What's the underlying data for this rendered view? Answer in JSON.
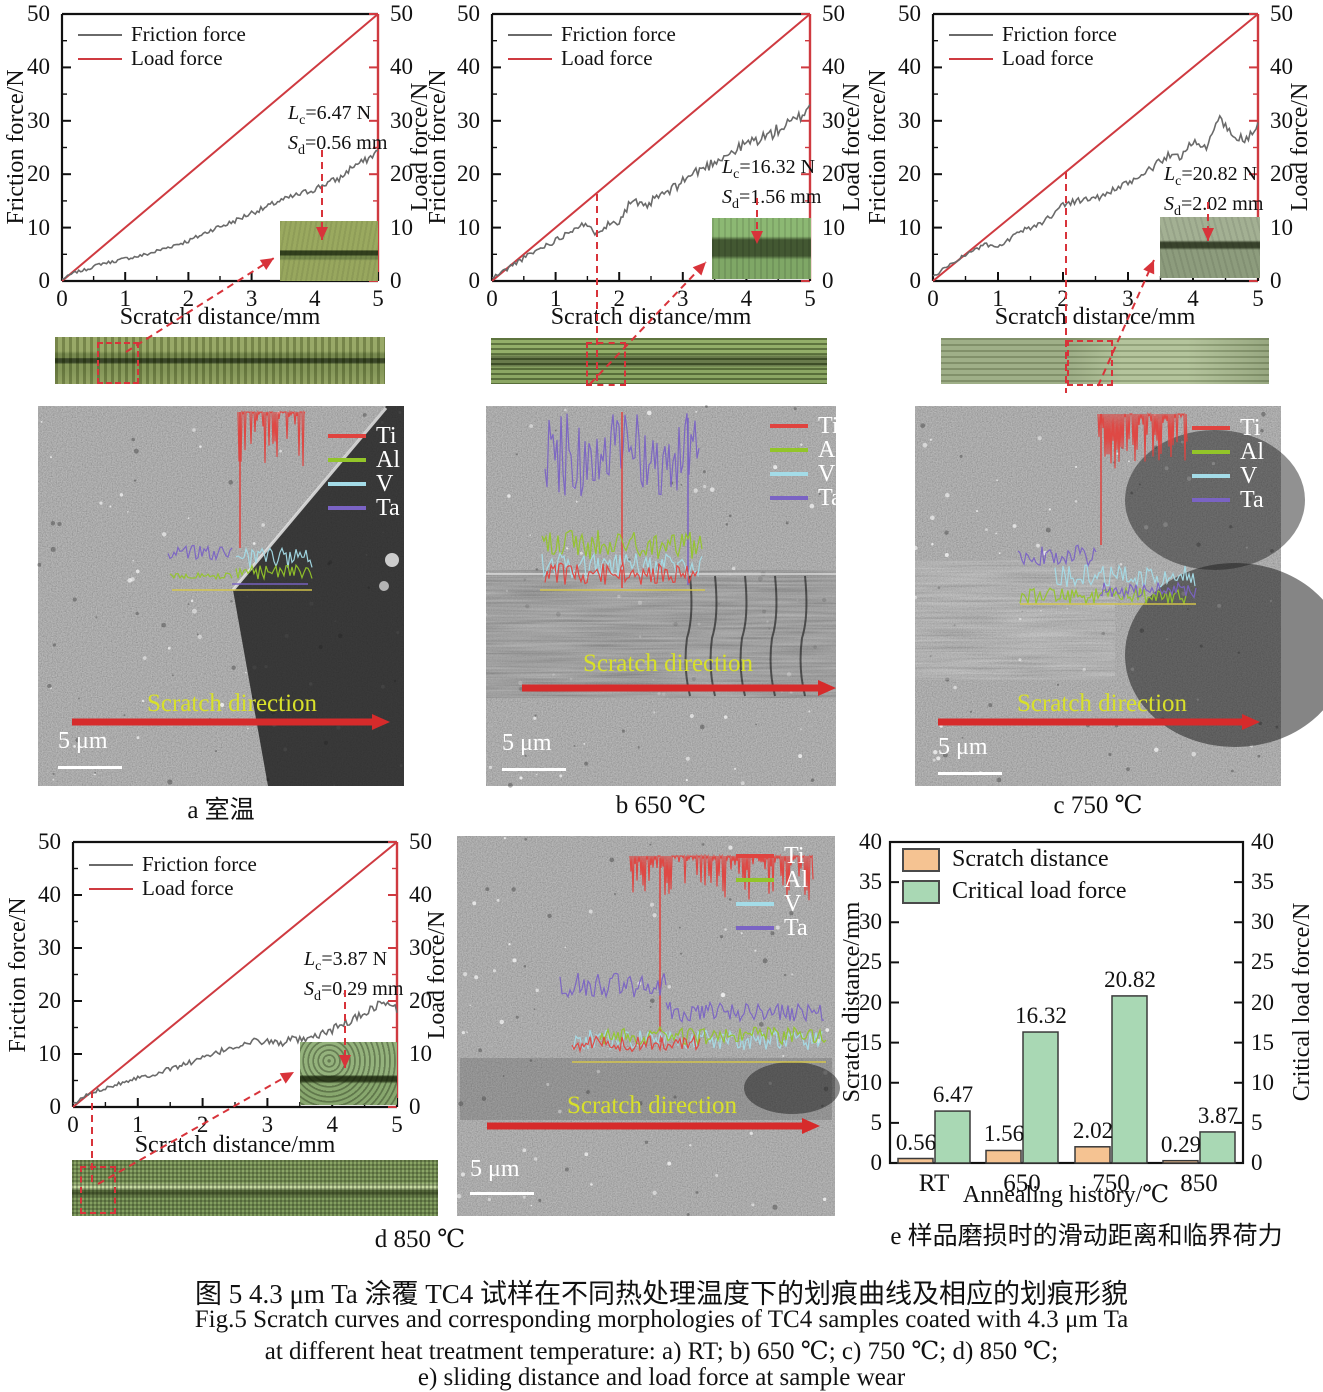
{
  "palette": {
    "load_red": "#cf3a40",
    "friction_gray": "#6a6a6a",
    "dashed_red": "#d8333a",
    "arrow_red": "#d62b2b",
    "bar_orange": "#f5c392",
    "bar_green": "#a9d8b4",
    "sem_label_yellow": "#d8e02a",
    "trace_ti_red": "#e0433f",
    "trace_al_green": "#93c529",
    "trace_v_cyan": "#a4dce8",
    "trace_ta_purple": "#7a63c4",
    "baseline_yellow": "#d8c84a"
  },
  "line_common": {
    "ylabel_left": "Friction force/N",
    "ylabel_right": "Load force/N",
    "xlabel": "Scratch distance/mm",
    "legend_friction": "Friction force",
    "legend_load": "Load force",
    "yticks": [
      0,
      10,
      20,
      30,
      40,
      50
    ],
    "xticks": [
      0,
      1,
      2,
      3,
      4,
      5
    ]
  },
  "charts": {
    "a": {
      "l1": {
        "sym": "L",
        "sub": "c",
        "rest": "=6.47 N"
      },
      "l2": {
        "sym": "S",
        "sub": "d",
        "rest": "=0.56 mm"
      }
    },
    "b": {
      "l1": {
        "sym": "L",
        "sub": "c",
        "rest": "=16.32 N"
      },
      "l2": {
        "sym": "S",
        "sub": "d",
        "rest": "=1.56 mm"
      }
    },
    "c": {
      "l1": {
        "sym": "L",
        "sub": "c",
        "rest": "=20.82 N"
      },
      "l2": {
        "sym": "S",
        "sub": "d",
        "rest": "=2.02 mm"
      }
    },
    "d": {
      "l1": {
        "sym": "L",
        "sub": "c",
        "rest": "=3.87 N"
      },
      "l2": {
        "sym": "S",
        "sub": "d",
        "rest": "=0.29 mm"
      }
    }
  },
  "sem_common": {
    "scratch_direction": "Scratch direction",
    "scale_label": "5 μm"
  },
  "sem_legend": [
    {
      "label": "Ti",
      "color": "#e0433f"
    },
    {
      "label": "Al",
      "color": "#93c529"
    },
    {
      "label": "V",
      "color": "#a4dce8"
    },
    {
      "label": "Ta",
      "color": "#7a63c4"
    }
  ],
  "captions": {
    "a": "a 室温",
    "b": "b 650 ℃",
    "c": "c 750 ℃",
    "d": "d 850 ℃",
    "e": "e 样品磨损时的滑动距离和临界荷力"
  },
  "figure_caption": {
    "zh": "图 5  4.3 μm Ta 涂覆 TC4 试样在不同热处理温度下的划痕曲线及相应的划痕形貌",
    "en1": "Fig.5 Scratch curves and corresponding morphologies of TC4 samples coated with 4.3 μm Ta",
    "en2": "at different heat treatment temperature: a) RT; b) 650 ℃; c) 750 ℃; d) 850 ℃;",
    "en3": "e) sliding distance and load force at sample wear"
  },
  "chart_data": [
    {
      "id": "a",
      "type": "line",
      "panel_label": "a 室温",
      "temperature": "RT",
      "critical_load_N": 6.47,
      "scratch_distance_mm": 0.56,
      "xlim": [
        0,
        5
      ],
      "ylim": [
        0,
        50
      ],
      "xlabel": "Scratch distance/mm",
      "ylabel_left": "Friction force/N",
      "ylabel_right": "Load force/N",
      "series": [
        {
          "name": "Friction force",
          "color": "#6a6a6a",
          "noise": 0.7,
          "x": [
            0,
            0.2,
            0.4,
            0.6,
            0.8,
            1,
            1.2,
            1.4,
            1.6,
            1.8,
            2,
            2.2,
            2.4,
            2.6,
            2.8,
            3,
            3.2,
            3.4,
            3.6,
            3.8,
            4,
            4.2,
            4.4,
            4.6,
            4.8,
            5
          ],
          "y": [
            0.3,
            1.6,
            2.2,
            3.2,
            3.6,
            4.2,
            4.6,
            5.2,
            6,
            6.8,
            7.5,
            8.6,
            9.8,
            10.6,
            11.6,
            12.8,
            13.6,
            14.8,
            15.6,
            16.4,
            17.2,
            18.4,
            19.2,
            21.5,
            22.5,
            24.3
          ]
        },
        {
          "name": "Load force",
          "color": "#cf3a40",
          "x": [
            0,
            5
          ],
          "y": [
            0,
            50
          ]
        }
      ]
    },
    {
      "id": "b",
      "type": "line",
      "panel_label": "b 650 ℃",
      "temperature": "650 ℃",
      "critical_load_N": 16.32,
      "scratch_distance_mm": 1.56,
      "xlim": [
        0,
        5
      ],
      "ylim": [
        0,
        50
      ],
      "xlabel": "Scratch distance/mm",
      "ylabel_left": "Friction force/N",
      "ylabel_right": "Load force/N",
      "series": [
        {
          "name": "Friction force",
          "color": "#6a6a6a",
          "noise": 1.3,
          "x": [
            0,
            0.2,
            0.4,
            0.6,
            0.8,
            1,
            1.2,
            1.4,
            1.6,
            1.8,
            2,
            2.2,
            2.4,
            2.6,
            2.8,
            3,
            3.2,
            3.4,
            3.6,
            3.8,
            4,
            4.2,
            4.4,
            4.6,
            4.8,
            5
          ],
          "y": [
            0.5,
            2,
            3.6,
            5,
            6.4,
            7.6,
            9.2,
            10.8,
            9.2,
            10.4,
            11.4,
            15.2,
            13.6,
            15.8,
            16.8,
            18.8,
            20.4,
            21.6,
            23.2,
            24.2,
            25.8,
            26.6,
            27.6,
            29,
            30.2,
            33
          ]
        },
        {
          "name": "Load force",
          "color": "#cf3a40",
          "x": [
            0,
            5
          ],
          "y": [
            0,
            50
          ]
        }
      ]
    },
    {
      "id": "c",
      "type": "line",
      "panel_label": "c 750 ℃",
      "temperature": "750 ℃",
      "critical_load_N": 20.82,
      "scratch_distance_mm": 2.02,
      "xlim": [
        0,
        5
      ],
      "ylim": [
        0,
        50
      ],
      "xlabel": "Scratch distance/mm",
      "ylabel_left": "Friction force/N",
      "ylabel_right": "Load force/N",
      "series": [
        {
          "name": "Friction force",
          "color": "#6a6a6a",
          "noise": 0.9,
          "x": [
            0,
            0.2,
            0.4,
            0.6,
            0.8,
            1,
            1.2,
            1.4,
            1.6,
            1.8,
            2,
            2.2,
            2.4,
            2.6,
            2.8,
            3,
            3.2,
            3.4,
            3.6,
            3.8,
            4,
            4.2,
            4.4,
            4.6,
            4.8,
            5
          ],
          "y": [
            0.8,
            2.6,
            4.2,
            5.6,
            6.8,
            6.2,
            8,
            9.6,
            10.4,
            12,
            14.4,
            15,
            15.4,
            15.8,
            17.2,
            18.2,
            19.8,
            21.4,
            23.4,
            23.2,
            26.4,
            24.6,
            30.8,
            27.2,
            26.4,
            29
          ]
        },
        {
          "name": "Load force",
          "color": "#cf3a40",
          "x": [
            0,
            5
          ],
          "y": [
            0,
            50
          ]
        }
      ]
    },
    {
      "id": "d",
      "type": "line",
      "panel_label": "d 850 ℃",
      "temperature": "850 ℃",
      "critical_load_N": 3.87,
      "scratch_distance_mm": 0.29,
      "xlim": [
        0,
        5
      ],
      "ylim": [
        0,
        50
      ],
      "xlabel": "Scratch distance/mm",
      "ylabel_left": "Friction force/N",
      "ylabel_right": "Load force/N",
      "series": [
        {
          "name": "Friction force",
          "color": "#6a6a6a",
          "noise": 0.9,
          "x": [
            0,
            0.2,
            0.4,
            0.6,
            0.8,
            1,
            1.2,
            1.4,
            1.6,
            1.8,
            2,
            2.2,
            2.4,
            2.6,
            2.8,
            3,
            3.2,
            3.4,
            3.6,
            3.8,
            4,
            4.2,
            4.4,
            4.6,
            4.8,
            5
          ],
          "y": [
            0.4,
            2.2,
            3.2,
            4,
            4.8,
            5.6,
            6,
            6.8,
            7.6,
            8.4,
            9.2,
            10,
            11.2,
            11.6,
            12.4,
            12.4,
            12,
            12.8,
            12.4,
            13.6,
            14.6,
            15.8,
            17,
            18.6,
            19.8,
            18.4
          ]
        },
        {
          "name": "Load force",
          "color": "#cf3a40",
          "x": [
            0,
            5
          ],
          "y": [
            0,
            50
          ]
        }
      ]
    },
    {
      "id": "e",
      "type": "bar",
      "panel_label": "e 样品磨损时的滑动距离和临界荷力",
      "categories": [
        "RT",
        "650",
        "750",
        "850"
      ],
      "series": [
        {
          "name": "Scratch distance",
          "color": "#f5c392",
          "axis": "left",
          "values": [
            0.56,
            1.56,
            2.02,
            0.29
          ]
        },
        {
          "name": "Critical load force",
          "color": "#a9d8b4",
          "axis": "right",
          "values": [
            6.47,
            16.32,
            20.82,
            3.87
          ]
        }
      ],
      "xlabel": "Annealing history/℃",
      "ylabel_left": "Scratch distance/mm",
      "ylabel_right": "Critical load force/N",
      "ylim": [
        0,
        40
      ],
      "yticks": [
        0,
        5,
        10,
        15,
        20,
        25,
        30,
        35,
        40
      ],
      "legend_position": "top-left",
      "grid": false
    }
  ]
}
